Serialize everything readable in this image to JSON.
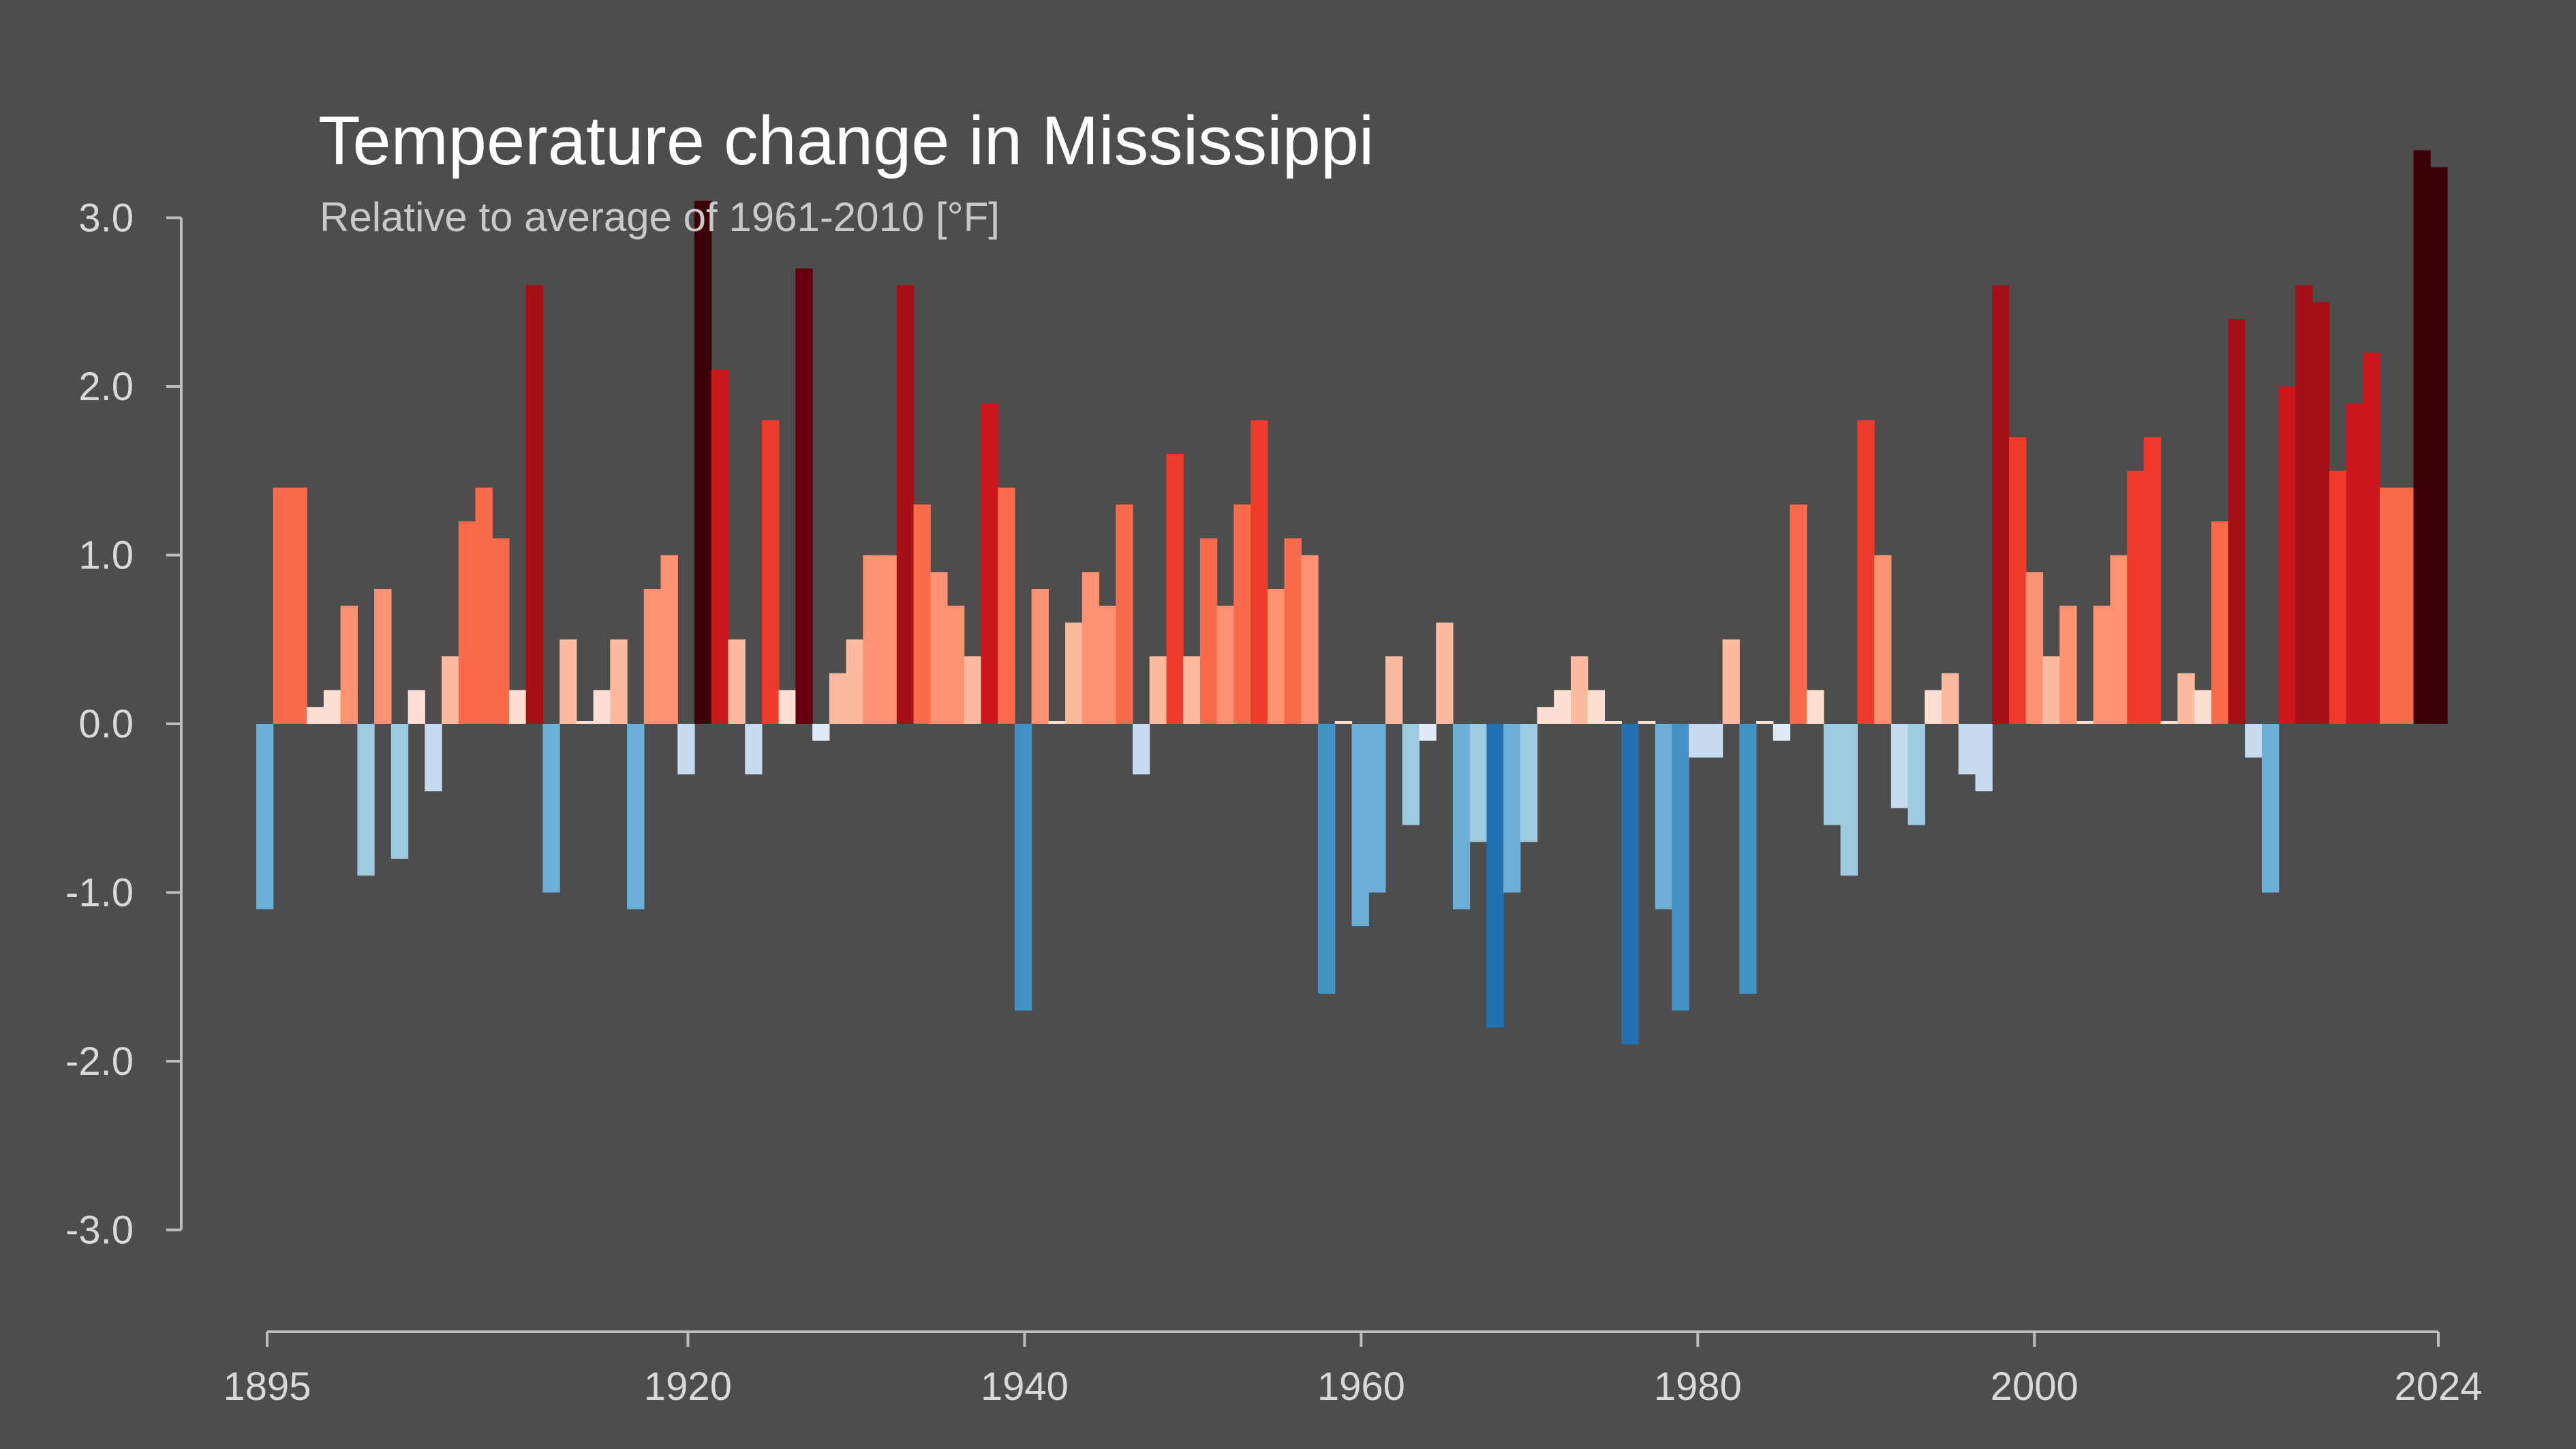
{
  "chart_data": {
    "type": "bar",
    "title": "Temperature change in Mississippi",
    "subtitle": "Relative to average of 1961-2010  [°F]",
    "xlabel": "",
    "ylabel": "",
    "x_start": 1895,
    "x_end": 2024,
    "ylim": [
      -3.0,
      3.0
    ],
    "yticks": [
      "3.0",
      "2.0",
      "1.0",
      "0.0",
      "-1.0",
      "-2.0",
      "-3.0"
    ],
    "xticks": [
      "1895",
      "1920",
      "1940",
      "1960",
      "1980",
      "2000",
      "2024"
    ],
    "grid": false,
    "legend": "none",
    "colors": {
      "background": "#4d4d4d",
      "axis": "#bdbdbd",
      "text": "#d9d9d9"
    },
    "values": [
      -1.1,
      1.4,
      1.4,
      0.1,
      0.2,
      0.7,
      -0.9,
      0.8,
      -0.8,
      0.2,
      -0.4,
      0.4,
      1.2,
      1.4,
      1.1,
      0.2,
      2.6,
      -1.0,
      0.5,
      0.0,
      0.2,
      0.5,
      -1.1,
      0.8,
      1.0,
      -0.3,
      3.1,
      2.1,
      0.5,
      -0.3,
      1.8,
      0.2,
      2.7,
      -0.1,
      0.3,
      0.5,
      1.0,
      1.0,
      2.6,
      1.3,
      0.9,
      0.7,
      0.4,
      1.9,
      1.4,
      -1.7,
      0.8,
      0.0,
      0.6,
      0.9,
      0.7,
      1.3,
      -0.3,
      0.4,
      1.6,
      0.4,
      1.1,
      0.7,
      1.3,
      1.8,
      0.8,
      1.1,
      1.0,
      -1.6,
      0.0,
      -1.2,
      -1.0,
      0.4,
      -0.6,
      -0.1,
      0.6,
      -1.1,
      -0.7,
      -1.8,
      -1.0,
      -0.7,
      0.1,
      0.2,
      0.4,
      0.2,
      0.0,
      -1.9,
      0.0,
      -1.1,
      -1.7,
      -0.2,
      -0.2,
      0.5,
      -1.6,
      0.0,
      -0.1,
      1.3,
      0.2,
      -0.6,
      -0.9,
      1.8,
      1.0,
      -0.5,
      -0.6,
      0.2,
      0.3,
      -0.3,
      -0.4,
      2.6,
      1.7,
      0.9,
      0.4,
      0.7,
      0.0,
      0.7,
      1.0,
      1.5,
      1.7,
      0.0,
      0.3,
      0.2,
      1.2,
      2.4,
      -0.2,
      -1.0,
      2.0,
      2.6,
      2.5,
      1.5,
      1.9,
      2.2,
      1.4,
      1.4,
      3.4,
      3.3
    ]
  }
}
